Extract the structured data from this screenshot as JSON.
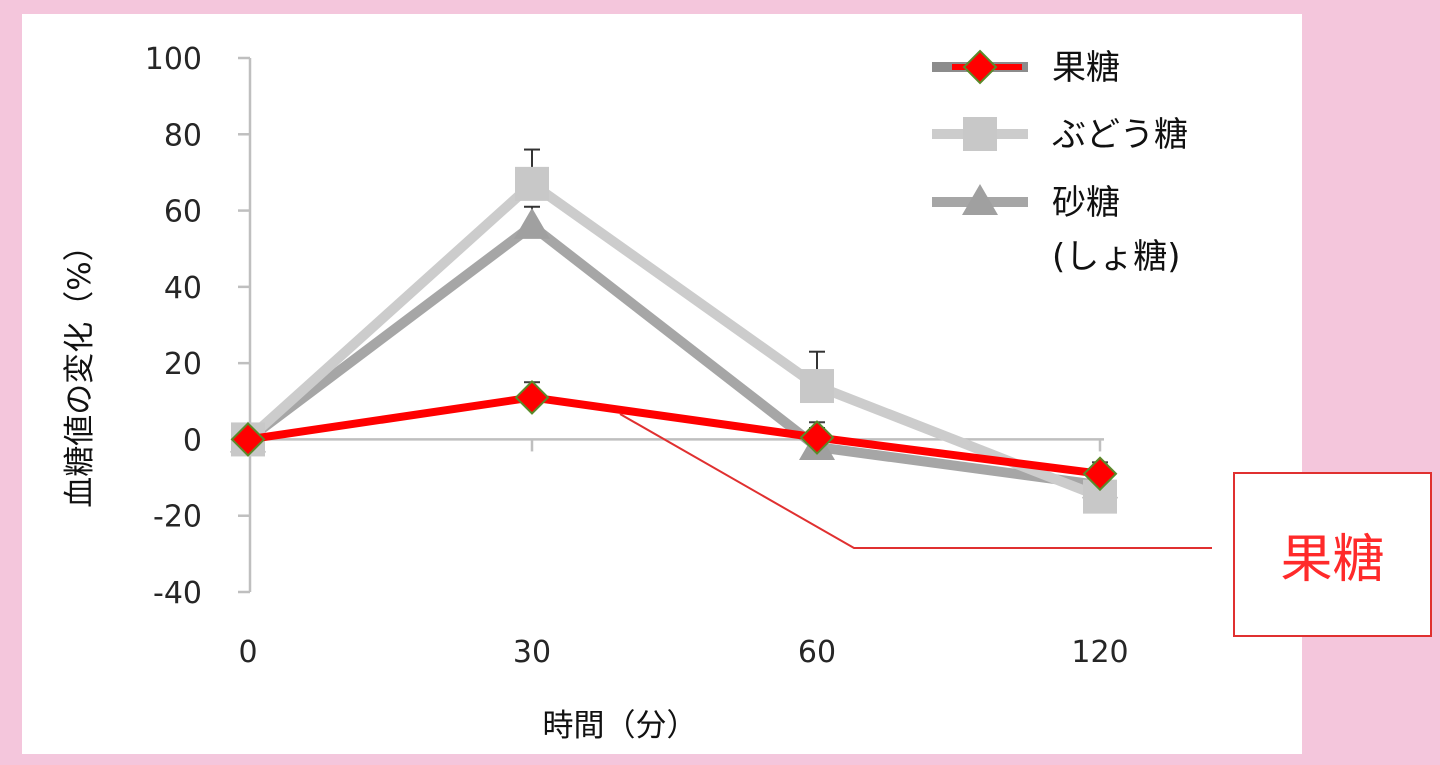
{
  "chart_data": {
    "type": "line",
    "categories": [
      "0",
      "30",
      "60",
      "120"
    ],
    "xlabel": "時間（分）",
    "ylabel": "血糖値の変化（%）",
    "ylim": [
      -40,
      100
    ],
    "yticks": [
      100,
      80,
      60,
      40,
      20,
      0,
      -20,
      -40
    ],
    "legend_position": "top-right",
    "series": [
      {
        "name": "果糖",
        "marker": "diamond",
        "color": "#ff0000",
        "marker_color": "#ff0000",
        "marker_edge": "#5a8a2a",
        "values": [
          0,
          11,
          0.5,
          -9
        ],
        "error": [
          0,
          4,
          4,
          3
        ]
      },
      {
        "name": "ぶどう糖",
        "marker": "square",
        "color": "#cccccc",
        "marker_color": "#c8c8c8",
        "values": [
          0,
          67,
          14,
          -15
        ],
        "error": [
          0,
          9,
          9,
          3
        ]
      },
      {
        "name": "砂糖\n(しょ糖)",
        "marker": "triangle",
        "color": "#a6a6a6",
        "marker_color": "#a0a0a0",
        "values": [
          0,
          56,
          -2,
          -12
        ],
        "error": [
          0,
          5,
          5,
          3
        ]
      }
    ],
    "annotation": {
      "text": "果糖",
      "color": "#ff2a2a",
      "target_series": "果糖"
    }
  }
}
